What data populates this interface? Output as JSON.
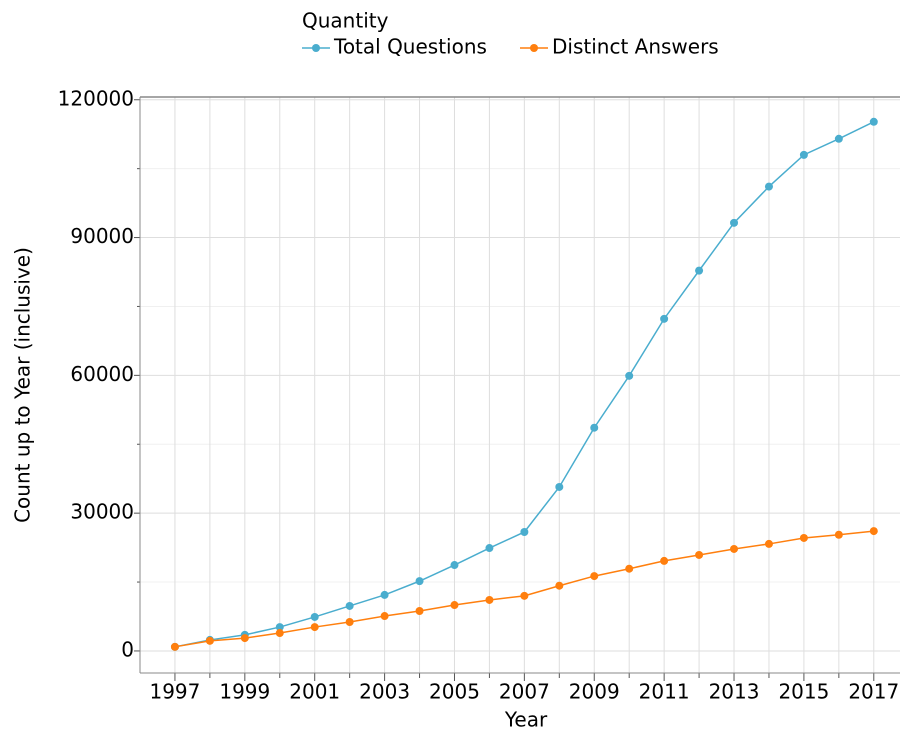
{
  "chart_data": {
    "type": "line",
    "legend_title": "Quantity",
    "legend_position": "top",
    "xlabel": "Year",
    "ylabel": "Count up to Year (inclusive)",
    "x": [
      1997,
      1998,
      1999,
      2000,
      2001,
      2002,
      2003,
      2004,
      2005,
      2006,
      2007,
      2008,
      2009,
      2010,
      2011,
      2012,
      2013,
      2014,
      2015,
      2016,
      2017
    ],
    "series": [
      {
        "name": "Total Questions",
        "color": "#4aadce",
        "values": [
          900,
          2400,
          3500,
          5200,
          7400,
          9800,
          12200,
          15200,
          18700,
          22400,
          25900,
          35700,
          48600,
          59900,
          72300,
          82800,
          93200,
          101100,
          108000,
          111500,
          115200
        ]
      },
      {
        "name": "Distinct Answers",
        "color": "#ff7f0e",
        "values": [
          900,
          2200,
          2800,
          3900,
          5200,
          6300,
          7600,
          8700,
          10000,
          11100,
          12000,
          14200,
          16300,
          17900,
          19600,
          20900,
          22200,
          23300,
          24600,
          25300,
          26100
        ]
      }
    ],
    "xlim": [
      1996,
      2017.75
    ],
    "xticks": [
      1997,
      1999,
      2001,
      2003,
      2005,
      2007,
      2009,
      2011,
      2013,
      2015,
      2017
    ],
    "xticks_minor": [
      1998,
      2000,
      2002,
      2004,
      2006,
      2008,
      2010,
      2012,
      2014,
      2016
    ],
    "ylim": [
      -4800,
      120600
    ],
    "yticks": [
      0,
      30000,
      60000,
      90000,
      120000
    ],
    "yticks_minor": [
      15000,
      45000,
      75000,
      105000
    ],
    "grid": true
  }
}
